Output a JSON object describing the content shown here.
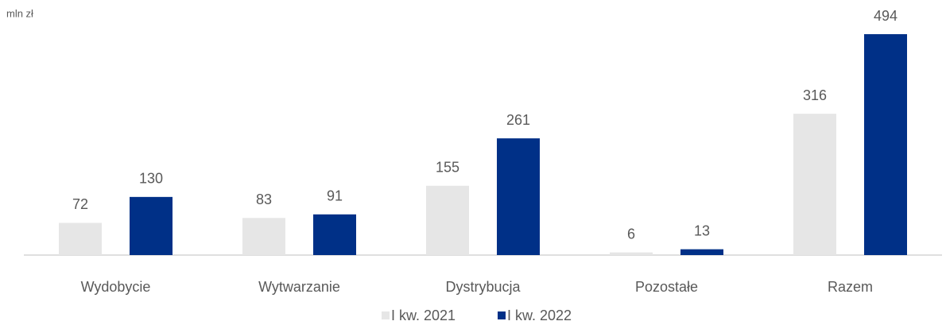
{
  "chart_data": {
    "type": "bar",
    "y_label": "mln zł",
    "categories": [
      "Wydobycie",
      "Wytwarzanie",
      "Dystrybucja",
      "Pozostałe",
      "Razem"
    ],
    "series": [
      {
        "name": "I kw. 2021",
        "color": "#e6e6e6",
        "values": [
          72,
          83,
          155,
          6,
          316
        ]
      },
      {
        "name": "I kw. 2022",
        "color": "#003087",
        "values": [
          130,
          91,
          261,
          13,
          494
        ]
      }
    ],
    "legend": "bottom"
  }
}
